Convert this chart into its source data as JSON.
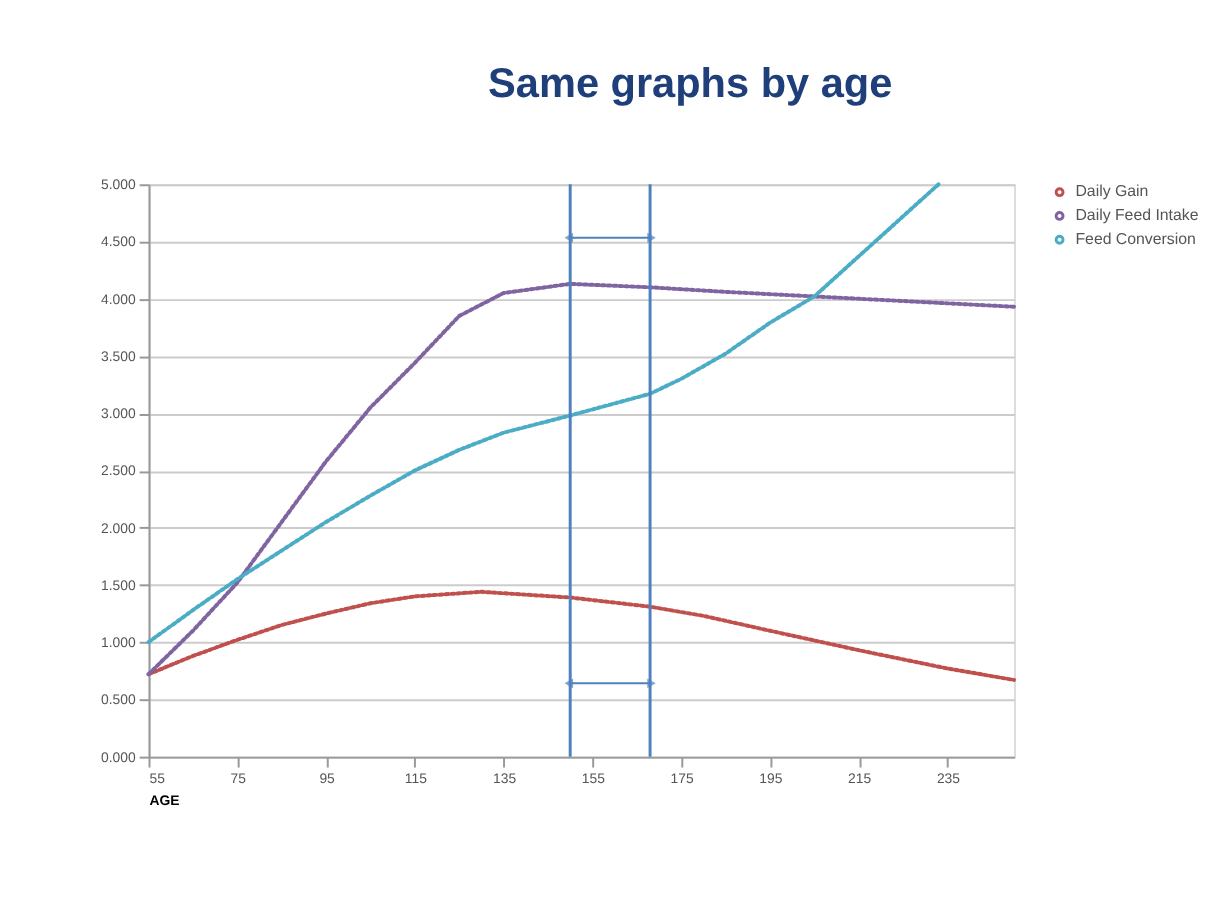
{
  "chart_data": {
    "type": "line",
    "title": "Same graphs by age",
    "xlabel": "AGE",
    "xlim": [
      55,
      250
    ],
    "xticks": [
      55,
      75,
      95,
      115,
      135,
      155,
      175,
      195,
      215,
      235
    ],
    "ylim": [
      0,
      5
    ],
    "yticks": [
      {
        "value": 0,
        "label": "0.000"
      },
      {
        "value": 0.5,
        "label": "0.500"
      },
      {
        "value": 1,
        "label": "1.000"
      },
      {
        "value": 1.5,
        "label": "1.500"
      },
      {
        "value": 2,
        "label": "2.000"
      },
      {
        "value": 2.5,
        "label": "2.500"
      },
      {
        "value": 3,
        "label": "3.000"
      },
      {
        "value": 3.5,
        "label": "3.500"
      },
      {
        "value": 4,
        "label": "4.000"
      },
      {
        "value": 4.5,
        "label": "4.500"
      },
      {
        "value": 5,
        "label": "5.000"
      }
    ],
    "grid": "y",
    "legend": "right",
    "line_style": "dotted",
    "ref_lines": [
      {
        "axis": "x",
        "value": 150,
        "color": "#4f81bd"
      },
      {
        "axis": "x",
        "value": 168,
        "color": "#4f81bd"
      }
    ],
    "series": [
      {
        "name": "Daily Gain",
        "color": "#c0504d",
        "x": [
          55,
          65,
          75,
          85,
          95,
          105,
          115,
          130,
          150,
          168,
          180,
          195,
          215,
          235,
          250
        ],
        "values": [
          0.72,
          0.88,
          1.02,
          1.15,
          1.25,
          1.34,
          1.4,
          1.44,
          1.39,
          1.31,
          1.23,
          1.1,
          0.93,
          0.77,
          0.67
        ]
      },
      {
        "name": "Daily Feed Intake",
        "color": "#8064a2",
        "x": [
          55,
          65,
          75,
          85,
          95,
          105,
          115,
          125,
          135,
          150,
          168,
          185,
          205,
          225,
          250
        ],
        "values": [
          0.72,
          1.1,
          1.52,
          2.05,
          2.58,
          3.05,
          3.44,
          3.85,
          4.05,
          4.13,
          4.1,
          4.06,
          4.02,
          3.98,
          3.93
        ]
      },
      {
        "name": "Feed Conversion",
        "color": "#4bacc6",
        "x": [
          55,
          65,
          75,
          85,
          95,
          105,
          115,
          125,
          135,
          150,
          168,
          175,
          185,
          195,
          205,
          215,
          225,
          233
        ],
        "values": [
          1.0,
          1.28,
          1.55,
          1.8,
          2.05,
          2.28,
          2.5,
          2.68,
          2.83,
          2.98,
          3.17,
          3.3,
          3.52,
          3.79,
          4.02,
          4.37,
          4.72,
          5.0
        ]
      }
    ]
  }
}
